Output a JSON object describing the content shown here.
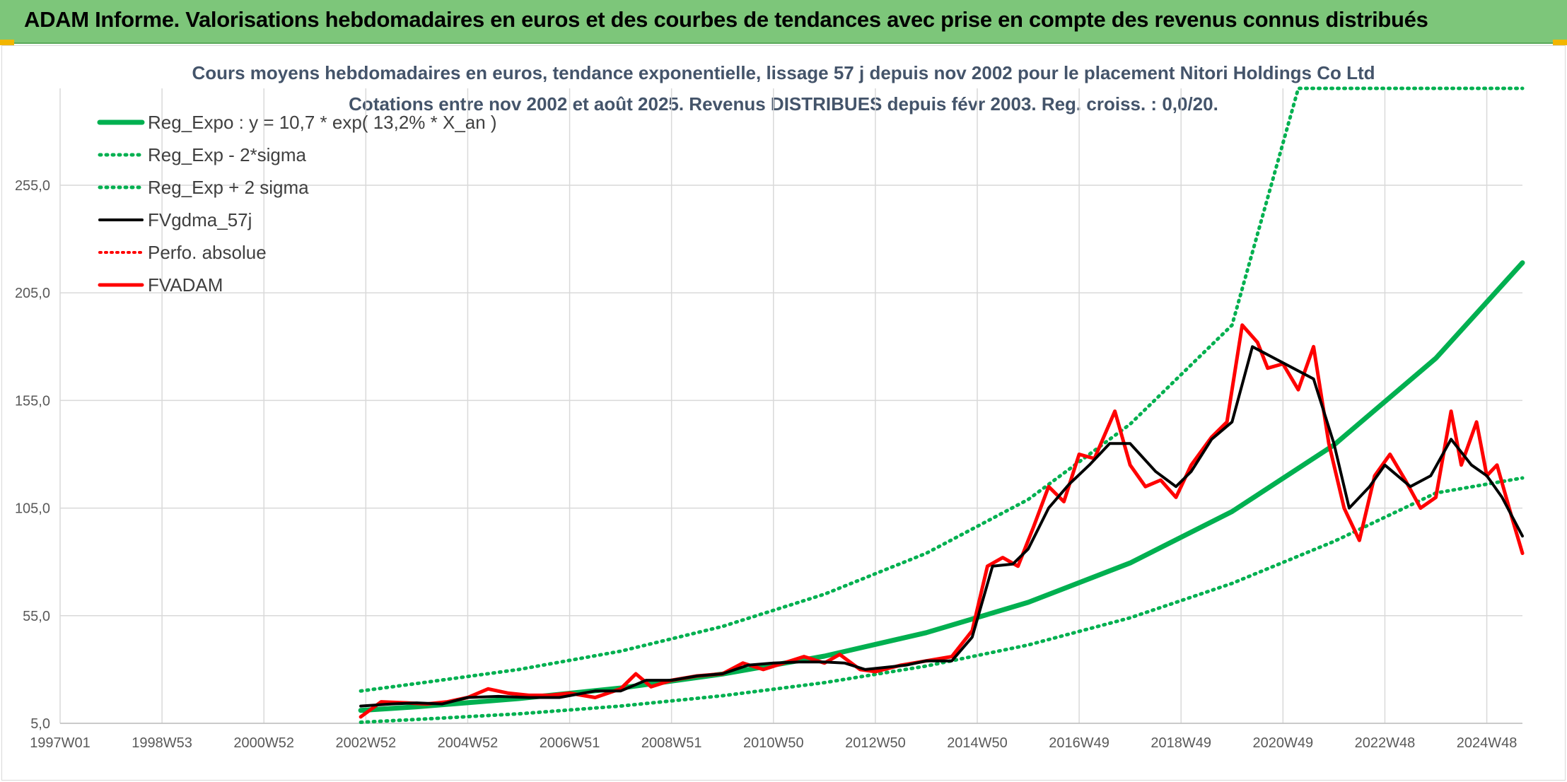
{
  "header": {
    "title": "ADAM Informe. Valorisations hebdomadaires en euros et des courbes de tendances avec prise en compte des revenus connus distribués"
  },
  "colors": {
    "banner": "#7dc67a",
    "trend_green": "#00b050",
    "band_green": "#00b050",
    "fvgdma_black": "#000000",
    "fvadam_red": "#ff0000",
    "grid": "#d9d9d9"
  },
  "chart_data": {
    "type": "line",
    "title": "Cours moyens hebdomadaires en euros, tendance exponentielle, lissage 57 j depuis nov 2002 pour le placement Nitori Holdings Co Ltd",
    "subtitle": "Cotations entre nov 2002 et août 2025. Revenus DISTRIBUES depuis févr 2003. Reg. croiss. : 0,0/20.",
    "xlabel": "",
    "ylabel": "",
    "x_range": [
      1997.0,
      2025.7
    ],
    "ylim": [
      5,
      300
    ],
    "y_ticks": [
      5,
      55,
      105,
      155,
      205,
      255
    ],
    "y_tick_labels": [
      "5,0",
      "55,0",
      "105,0",
      "155,0",
      "205,0",
      "255,0"
    ],
    "x_ticks": [
      1997.0,
      1999.0,
      2001.0,
      2003.0,
      2005.0,
      2007.0,
      2009.0,
      2011.0,
      2013.0,
      2015.0,
      2017.0,
      2019.0,
      2021.0,
      2023.0,
      2025.0
    ],
    "x_tick_labels": [
      "1997W01",
      "1998W53",
      "2000W52",
      "2002W52",
      "2004W52",
      "2006W51",
      "2008W51",
      "2010W50",
      "2012W50",
      "2014W50",
      "2016W49",
      "2018W49",
      "2020W49",
      "2022W48",
      "2024W48"
    ],
    "grid": true,
    "legend_position": "top-left",
    "series": [
      {
        "name": "Reg_Expo : y = 10,7 * exp( 13,2% *  X_an )",
        "style": "solid",
        "x": [
          2002.9,
          2004,
          2006,
          2008,
          2010,
          2012,
          2014,
          2016,
          2018,
          2020,
          2022,
          2024,
          2025.7
        ],
        "values": [
          11.0,
          12.7,
          16.5,
          21.4,
          27.9,
          36.2,
          47.1,
          61.2,
          79.5,
          103.4,
          134.3,
          174.6,
          219.0
        ]
      },
      {
        "name": "Reg_Exp - 2*sigma",
        "style": "dotted",
        "x": [
          2002.9,
          2004,
          2006,
          2008,
          2010,
          2012,
          2014,
          2016,
          2018,
          2020,
          2022,
          2024,
          2025.7
        ],
        "values": [
          5.5,
          6.8,
          9.4,
          13.0,
          17.8,
          23.9,
          31.6,
          41.4,
          54.0,
          70.0,
          89.5,
          112.0,
          119.0
        ]
      },
      {
        "name": "Reg_Exp + 2 sigma",
        "style": "dotted",
        "x": [
          2002.9,
          2004,
          2006,
          2008,
          2010,
          2012,
          2014,
          2016,
          2018,
          2020,
          2021.3,
          2025.7
        ],
        "values": [
          20.0,
          23.5,
          30.0,
          38.5,
          50.0,
          65.0,
          84.0,
          109.0,
          144.0,
          190.0,
          300.0,
          300.0
        ]
      },
      {
        "name": "FVgdma_57j",
        "style": "solid",
        "x": [
          2002.9,
          2003.5,
          2004.0,
          2004.5,
          2005.0,
          2005.6,
          2006.2,
          2006.8,
          2007.5,
          2008.0,
          2008.5,
          2009.0,
          2009.5,
          2010.0,
          2010.5,
          2011.0,
          2011.5,
          2012.0,
          2012.4,
          2012.8,
          2013.2,
          2013.6,
          2014.0,
          2014.5,
          2014.9,
          2015.3,
          2015.7,
          2016.0,
          2016.4,
          2016.8,
          2017.2,
          2017.6,
          2018.0,
          2018.5,
          2018.9,
          2019.2,
          2019.6,
          2020.0,
          2020.4,
          2020.8,
          2021.2,
          2021.6,
          2022.0,
          2022.3,
          2022.7,
          2023.0,
          2023.5,
          2023.9,
          2024.3,
          2024.7,
          2025.0,
          2025.3,
          2025.7
        ],
        "values": [
          13.0,
          14.0,
          14.5,
          14.0,
          17.0,
          17.5,
          17.0,
          17.0,
          20.0,
          20.0,
          25.0,
          25.0,
          27.0,
          28.0,
          32.0,
          33.0,
          33.5,
          33.5,
          33.0,
          30.0,
          31.0,
          32.0,
          34.0,
          34.0,
          45.0,
          78.0,
          79.0,
          86.0,
          105.0,
          116.0,
          125.0,
          135.0,
          135.0,
          122.0,
          115.0,
          122.0,
          137.0,
          145.0,
          180.0,
          175.0,
          170.0,
          165.0,
          135.0,
          105.0,
          115.0,
          125.0,
          115.0,
          120.0,
          137.0,
          125.0,
          120.0,
          110.0,
          92.0
        ]
      },
      {
        "name": "Perfo. absolue",
        "style": "dotted",
        "x": [],
        "values": []
      },
      {
        "name": "FVADAM",
        "style": "solid",
        "x": [
          2002.9,
          2003.3,
          2003.8,
          2004.2,
          2004.6,
          2005.0,
          2005.4,
          2005.8,
          2006.2,
          2006.6,
          2007.0,
          2007.5,
          2008.0,
          2008.3,
          2008.6,
          2009.0,
          2009.5,
          2010.0,
          2010.4,
          2010.8,
          2011.2,
          2011.6,
          2012.0,
          2012.3,
          2012.7,
          2013.0,
          2013.5,
          2014.0,
          2014.5,
          2014.9,
          2015.2,
          2015.5,
          2015.8,
          2016.1,
          2016.4,
          2016.7,
          2017.0,
          2017.3,
          2017.7,
          2018.0,
          2018.3,
          2018.6,
          2018.9,
          2019.2,
          2019.6,
          2019.9,
          2020.2,
          2020.5,
          2020.7,
          2021.0,
          2021.3,
          2021.6,
          2021.9,
          2022.2,
          2022.5,
          2022.8,
          2023.1,
          2023.4,
          2023.7,
          2024.0,
          2024.3,
          2024.5,
          2024.8,
          2025.0,
          2025.2,
          2025.5,
          2025.7
        ],
        "values": [
          8.0,
          15.0,
          14.5,
          14.0,
          15.0,
          17.0,
          21.0,
          19.0,
          18.0,
          18.0,
          19.0,
          17.0,
          21.0,
          28.0,
          22.0,
          25.0,
          27.0,
          28.0,
          33.0,
          30.0,
          33.0,
          36.0,
          33.0,
          37.0,
          30.0,
          29.0,
          32.0,
          34.0,
          36.0,
          48.0,
          78.0,
          82.0,
          78.0,
          96.0,
          115.0,
          108.0,
          130.0,
          128.0,
          150.0,
          125.0,
          115.0,
          118.0,
          110.0,
          125.0,
          138.0,
          145.0,
          190.0,
          182.0,
          170.0,
          172.0,
          160.0,
          180.0,
          135.0,
          105.0,
          90.0,
          120.0,
          130.0,
          118.0,
          105.0,
          110.0,
          150.0,
          125.0,
          145.0,
          120.0,
          125.0,
          100.0,
          84.0
        ]
      }
    ]
  }
}
